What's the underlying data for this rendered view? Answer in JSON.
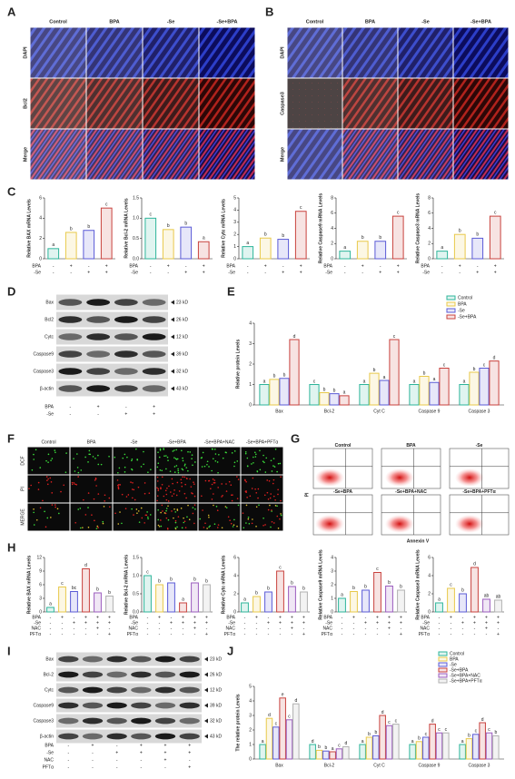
{
  "panel_labels": [
    "A",
    "B",
    "C",
    "D",
    "E",
    "F",
    "G",
    "H",
    "I",
    "J"
  ],
  "panel_a": {
    "columns": [
      "Control",
      "BPA",
      "-Se",
      "-Se+BPA"
    ],
    "rows": [
      "DAPI",
      "Bcl2",
      "Merge"
    ]
  },
  "panel_b": {
    "columns": [
      "Control",
      "BPA",
      "-Se",
      "-Se+BPA"
    ],
    "rows": [
      "DAPI",
      "Caspase3",
      "Merge"
    ]
  },
  "panel_d": {
    "bands": [
      "Bax",
      "Bcl2",
      "Cytc",
      "Caspase9",
      "Caspase3",
      "β-actin"
    ],
    "sizes": [
      "23 kD",
      "26 kD",
      "12 kD",
      "39 kD",
      "32 kD",
      "43 kD"
    ],
    "treatments": [
      {
        "name": "BPA",
        "signs": [
          "-",
          "+",
          "-",
          "+"
        ]
      },
      {
        "name": "-Se",
        "signs": [
          "-",
          "-",
          "+",
          "+"
        ]
      }
    ]
  },
  "panel_f": {
    "columns": [
      "Control",
      "BPA",
      "-Se",
      "-Se+BPA",
      "-Se+BPA+NAC",
      "-Se+BPA+PFTα"
    ],
    "rows": [
      "DCF",
      "PI",
      "MERGE"
    ]
  },
  "panel_g": {
    "titles": [
      "Control",
      "BPA",
      "-Se",
      "-Se+BPA",
      "-Se+BPA+NAC",
      "-Se+BPA+PFTα"
    ],
    "y_label": "PI",
    "x_label": "Annexin V"
  },
  "panel_i": {
    "bands": [
      "Bax",
      "Bcl-2",
      "Cytc",
      "Caspase9",
      "Caspase3",
      "β-actin"
    ],
    "sizes": [
      "23 kD",
      "26 kD",
      "12 kD",
      "39 kD",
      "32 kD",
      "43 kD"
    ],
    "treatments": [
      {
        "name": "BPA",
        "signs": [
          "-",
          "+",
          "-",
          "+",
          "+",
          "+"
        ]
      },
      {
        "name": "-Se",
        "signs": [
          "-",
          "-",
          "+",
          "+",
          "+",
          "+"
        ]
      },
      {
        "name": "NAC",
        "signs": [
          "-",
          "-",
          "-",
          "-",
          "+",
          "-"
        ]
      },
      {
        "name": "PFTα",
        "signs": [
          "-",
          "-",
          "-",
          "-",
          "-",
          "+"
        ]
      }
    ]
  },
  "chart_data": [
    {
      "type": "bar",
      "y_label": "Relative BAX mRNA Levels",
      "values": [
        1,
        2.6,
        2.8,
        5
      ],
      "letters": [
        "a",
        "b",
        "b",
        "c"
      ],
      "colors": [
        "#2db59a",
        "#e8c94a",
        "#5b5bd6",
        "#c8413d"
      ],
      "ylim": [
        0,
        6
      ],
      "yticks": [
        0,
        2,
        4,
        6
      ],
      "treatments": [
        {
          "name": "BPA",
          "signs": [
            "-",
            "+",
            "-",
            "+"
          ]
        },
        {
          "name": "-Se",
          "signs": [
            "-",
            "-",
            "+",
            "+"
          ]
        }
      ]
    },
    {
      "type": "bar",
      "y_label": "Relative Bcl-2 mRNA Levels",
      "values": [
        1.0,
        0.72,
        0.78,
        0.42
      ],
      "letters": [
        "c",
        "b",
        "b",
        "a"
      ],
      "colors": [
        "#2db59a",
        "#e8c94a",
        "#5b5bd6",
        "#c8413d"
      ],
      "ylim": [
        0,
        1.5
      ],
      "yticks": [
        {
          "value": 0,
          "label": "0.0"
        },
        0.5,
        {
          "value": 1,
          "label": "1.0"
        },
        1.5
      ],
      "treatments": [
        {
          "name": "BPA",
          "signs": [
            "-",
            "+",
            "-",
            "+"
          ]
        },
        {
          "name": "-Se",
          "signs": [
            "-",
            "-",
            "+",
            "+"
          ]
        }
      ]
    },
    {
      "type": "bar",
      "y_label": "Relative Cytc mRNA Levels",
      "values": [
        1,
        1.7,
        1.6,
        3.9
      ],
      "letters": [
        "a",
        "b",
        "b",
        "c"
      ],
      "colors": [
        "#2db59a",
        "#e8c94a",
        "#5b5bd6",
        "#c8413d"
      ],
      "ylim": [
        0,
        5
      ],
      "yticks": [
        0,
        1,
        2,
        3,
        4,
        5
      ],
      "treatments": [
        {
          "name": "BPA",
          "signs": [
            "-",
            "+",
            "-",
            "+"
          ]
        },
        {
          "name": "-Se",
          "signs": [
            "-",
            "-",
            "+",
            "+"
          ]
        }
      ]
    },
    {
      "type": "bar",
      "y_label": "Relative Caspase9 mRNA Levels",
      "values": [
        1,
        2.3,
        2.3,
        5.6
      ],
      "letters": [
        "a",
        "b",
        "b",
        "c"
      ],
      "colors": [
        "#2db59a",
        "#e8c94a",
        "#5b5bd6",
        "#c8413d"
      ],
      "ylim": [
        0,
        8
      ],
      "yticks": [
        0,
        2,
        4,
        6,
        8
      ],
      "treatments": [
        {
          "name": "BPA",
          "signs": [
            "-",
            "+",
            "-",
            "+"
          ]
        },
        {
          "name": "-Se",
          "signs": [
            "-",
            "-",
            "+",
            "+"
          ]
        }
      ]
    },
    {
      "type": "bar",
      "y_label": "Relative Caspase3 mRNA Levels",
      "values": [
        1,
        3.2,
        2.7,
        5.6
      ],
      "letters": [
        "a",
        "b",
        "b",
        "c"
      ],
      "colors": [
        "#2db59a",
        "#e8c94a",
        "#5b5bd6",
        "#c8413d"
      ],
      "ylim": [
        0,
        8
      ],
      "yticks": [
        0,
        2,
        4,
        6,
        8
      ],
      "treatments": [
        {
          "name": "BPA",
          "signs": [
            "-",
            "+",
            "-",
            "+"
          ]
        },
        {
          "name": "-Se",
          "signs": [
            "-",
            "-",
            "+",
            "+"
          ]
        }
      ]
    },
    {
      "type": "grouped_bar",
      "y_label": "Relative protein Levels",
      "categories": [
        "Bax",
        "Bcl-2",
        "Cyt C",
        "Caspase 9",
        "Caspase 3"
      ],
      "ylim": [
        0,
        4
      ],
      "yticks": [
        0,
        1,
        2,
        3,
        4
      ],
      "series": [
        {
          "name": "Control",
          "color": "#2db59a",
          "values": [
            1,
            1,
            1,
            1,
            1
          ],
          "letters": [
            "a",
            "c",
            "a",
            "a",
            "a"
          ]
        },
        {
          "name": "BPA",
          "color": "#e8c94a",
          "values": [
            1.25,
            0.6,
            1.55,
            1.4,
            1.6
          ],
          "letters": [
            "b",
            "b",
            "b",
            "b",
            "b"
          ]
        },
        {
          "name": "-Se",
          "color": "#5b5bd6",
          "values": [
            1.3,
            0.55,
            1.2,
            1.1,
            1.8
          ],
          "letters": [
            "b",
            "b",
            "a",
            "a",
            "c"
          ]
        },
        {
          "name": "-Se+BPA",
          "color": "#c8413d",
          "values": [
            3.2,
            0.45,
            3.2,
            1.8,
            2.15
          ],
          "letters": [
            "d",
            "a",
            "c",
            "c",
            "d"
          ]
        }
      ]
    },
    {
      "type": "bar",
      "y_label": "Relative BAX mRNA Levels",
      "values": [
        1,
        5.5,
        4.5,
        9.5,
        4.2,
        3.5
      ],
      "letters": [
        "a",
        "c",
        "bc",
        "d",
        "b",
        "b"
      ],
      "colors": [
        "#2db59a",
        "#e8c94a",
        "#5b5bd6",
        "#c8413d",
        "#9a5bbd",
        "#b0b0b0"
      ],
      "ylim": [
        0,
        12
      ],
      "yticks": [
        0,
        3,
        6,
        9,
        12
      ],
      "treatments": [
        {
          "name": "BPA",
          "signs": [
            "-",
            "+",
            "-",
            "+",
            "+",
            "+"
          ]
        },
        {
          "name": "-Se",
          "signs": [
            "-",
            "-",
            "+",
            "+",
            "+",
            "+"
          ]
        },
        {
          "name": "NAC",
          "signs": [
            "-",
            "-",
            "-",
            "-",
            "+",
            "-"
          ]
        },
        {
          "name": "PFTα",
          "signs": [
            "-",
            "-",
            "-",
            "-",
            "-",
            "+"
          ]
        }
      ]
    },
    {
      "type": "bar",
      "y_label": "Relative Bcl-2 mRNA Levels",
      "values": [
        1.0,
        0.75,
        0.8,
        0.25,
        0.8,
        0.75
      ],
      "letters": [
        "c",
        "b",
        "b",
        "a",
        "b",
        "b"
      ],
      "colors": [
        "#2db59a",
        "#e8c94a",
        "#5b5bd6",
        "#c8413d",
        "#9a5bbd",
        "#b0b0b0"
      ],
      "ylim": [
        0,
        1.5
      ],
      "yticks": [
        {
          "value": 0,
          "label": "0.0"
        },
        0.5,
        {
          "value": 1,
          "label": "1.0"
        },
        1.5
      ],
      "treatments": [
        {
          "name": "BPA",
          "signs": [
            "-",
            "+",
            "-",
            "+",
            "+",
            "+"
          ]
        },
        {
          "name": "-Se",
          "signs": [
            "-",
            "-",
            "+",
            "+",
            "+",
            "+"
          ]
        },
        {
          "name": "NAC",
          "signs": [
            "-",
            "-",
            "-",
            "-",
            "+",
            "-"
          ]
        },
        {
          "name": "PFTα",
          "signs": [
            "-",
            "-",
            "-",
            "-",
            "-",
            "+"
          ]
        }
      ]
    },
    {
      "type": "bar",
      "y_label": "Relative Cytc mRNA Levels",
      "values": [
        1,
        1.7,
        2.2,
        4.5,
        2.8,
        2.2
      ],
      "letters": [
        "a",
        "b",
        "b",
        "c",
        "b",
        "b"
      ],
      "colors": [
        "#2db59a",
        "#e8c94a",
        "#5b5bd6",
        "#c8413d",
        "#9a5bbd",
        "#b0b0b0"
      ],
      "ylim": [
        0,
        6
      ],
      "yticks": [
        0,
        2,
        4,
        6
      ],
      "treatments": [
        {
          "name": "BPA",
          "signs": [
            "-",
            "+",
            "-",
            "+",
            "+",
            "+"
          ]
        },
        {
          "name": "-Se",
          "signs": [
            "-",
            "-",
            "+",
            "+",
            "+",
            "+"
          ]
        },
        {
          "name": "NAC",
          "signs": [
            "-",
            "-",
            "-",
            "-",
            "+",
            "-"
          ]
        },
        {
          "name": "PFTα",
          "signs": [
            "-",
            "-",
            "-",
            "-",
            "-",
            "+"
          ]
        }
      ]
    },
    {
      "type": "bar",
      "y_label": "Relative Caspase9 mRNA Levels",
      "values": [
        1,
        1.5,
        1.6,
        2.9,
        1.9,
        1.6
      ],
      "letters": [
        "a",
        "b",
        "b",
        "c",
        "b",
        "b"
      ],
      "colors": [
        "#2db59a",
        "#e8c94a",
        "#5b5bd6",
        "#c8413d",
        "#9a5bbd",
        "#b0b0b0"
      ],
      "ylim": [
        0,
        4
      ],
      "yticks": [
        0,
        1,
        2,
        3,
        4
      ],
      "treatments": [
        {
          "name": "BPA",
          "signs": [
            "-",
            "+",
            "-",
            "+",
            "+",
            "+"
          ]
        },
        {
          "name": "-Se",
          "signs": [
            "-",
            "-",
            "+",
            "+",
            "+",
            "+"
          ]
        },
        {
          "name": "NAC",
          "signs": [
            "-",
            "-",
            "-",
            "-",
            "+",
            "-"
          ]
        },
        {
          "name": "PFTα",
          "signs": [
            "-",
            "-",
            "-",
            "-",
            "-",
            "+"
          ]
        }
      ]
    },
    {
      "type": "bar",
      "y_label": "Relative Caspase3 mRNA Levels",
      "values": [
        1,
        2.6,
        2,
        4.9,
        1.4,
        1.3
      ],
      "letters": [
        "a",
        "c",
        "b",
        "d",
        "ab",
        "ab"
      ],
      "colors": [
        "#2db59a",
        "#e8c94a",
        "#5b5bd6",
        "#c8413d",
        "#9a5bbd",
        "#b0b0b0"
      ],
      "ylim": [
        0,
        6
      ],
      "yticks": [
        0,
        2,
        4,
        6
      ],
      "treatments": [
        {
          "name": "BPA",
          "signs": [
            "-",
            "+",
            "-",
            "+",
            "+",
            "+"
          ]
        },
        {
          "name": "-Se",
          "signs": [
            "-",
            "-",
            "+",
            "+",
            "+",
            "+"
          ]
        },
        {
          "name": "NAC",
          "signs": [
            "-",
            "-",
            "-",
            "-",
            "+",
            "-"
          ]
        },
        {
          "name": "PFTα",
          "signs": [
            "-",
            "-",
            "-",
            "-",
            "-",
            "+"
          ]
        }
      ]
    },
    {
      "type": "grouped_bar",
      "y_label": "The relative protein Levels",
      "categories": [
        "Bax",
        "Bcl-2",
        "Cyt C",
        "Caspase 9",
        "Caspase 3"
      ],
      "ylim": [
        0,
        5
      ],
      "yticks": [
        0,
        1,
        2,
        3,
        4,
        5
      ],
      "series": [
        {
          "name": "Control",
          "color": "#2db59a",
          "values": [
            1,
            1,
            1,
            1,
            1
          ],
          "letters": [
            "a",
            "d",
            "a",
            "a",
            "a"
          ]
        },
        {
          "name": "BPA",
          "color": "#e8c94a",
          "values": [
            2.8,
            0.6,
            1.5,
            1.2,
            1.4
          ],
          "letters": [
            "d",
            "b",
            "b",
            "b",
            "b"
          ]
        },
        {
          "name": "-Se",
          "color": "#5b5bd6",
          "values": [
            2.2,
            0.55,
            1.6,
            1.5,
            1.7
          ],
          "letters": [
            "c",
            "b",
            "b",
            "c",
            "c"
          ]
        },
        {
          "name": "-Se+BPA",
          "color": "#c8413d",
          "values": [
            4.2,
            0.5,
            3.0,
            2.4,
            2.5
          ],
          "letters": [
            "e",
            "a",
            "d",
            "d",
            "d"
          ]
        },
        {
          "name": "-Se+BPA+NAC",
          "color": "#9a5bbd",
          "values": [
            2.7,
            0.7,
            2.3,
            1.8,
            1.8
          ],
          "letters": [
            "c",
            "c",
            "c",
            "c",
            "c"
          ]
        },
        {
          "name": "-Se+BPA+PFTα",
          "color": "#b0b0b0",
          "values": [
            3.8,
            0.85,
            2.4,
            1.8,
            1.6
          ],
          "letters": [
            "d",
            "d",
            "c",
            "c",
            "b"
          ]
        }
      ]
    }
  ]
}
